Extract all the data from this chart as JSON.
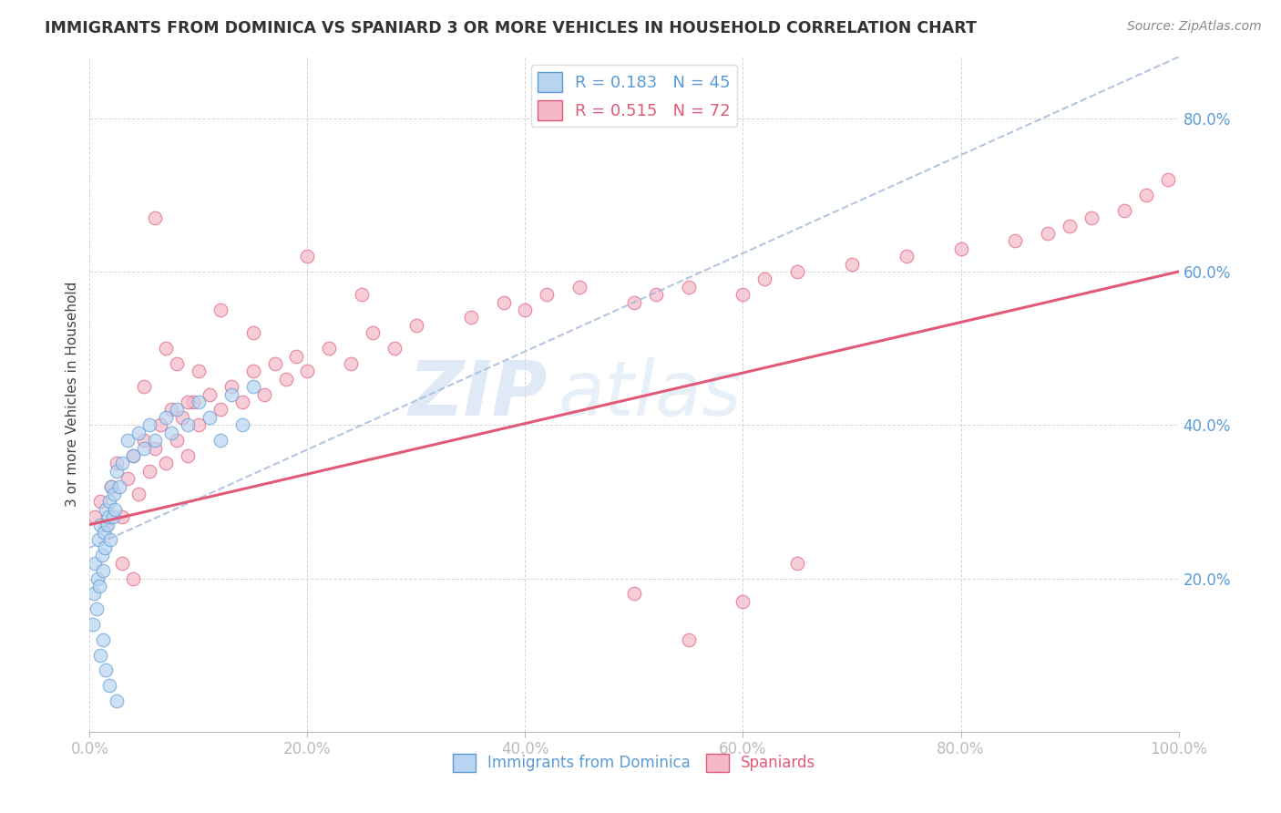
{
  "title": "IMMIGRANTS FROM DOMINICA VS SPANIARD 3 OR MORE VEHICLES IN HOUSEHOLD CORRELATION CHART",
  "source": "Source: ZipAtlas.com",
  "ylabel": "3 or more Vehicles in Household",
  "x_ticks": [
    0.0,
    20.0,
    40.0,
    60.0,
    80.0,
    100.0
  ],
  "x_tick_labels": [
    "0.0%",
    "20.0%",
    "40.0%",
    "60.0%",
    "80.0%",
    "100.0%"
  ],
  "y_ticks": [
    0.0,
    20.0,
    40.0,
    60.0,
    80.0
  ],
  "y_tick_labels": [
    "",
    "20.0%",
    "40.0%",
    "60.0%",
    "80.0%"
  ],
  "xlim": [
    0,
    100
  ],
  "ylim": [
    0,
    88
  ],
  "legend_entries": [
    {
      "label": "R = 0.183   N = 45"
    },
    {
      "label": "R = 0.515   N = 72"
    }
  ],
  "legend_labels_bottom": [
    "Immigrants from Dominica",
    "Spaniards"
  ],
  "watermark_zip": "ZIP",
  "watermark_atlas": "atlas",
  "blue_color": "#5b9bd5",
  "pink_color": "#e05a78",
  "blue_marker_face": "#b8d4f0",
  "blue_marker_edge": "#5b9bd5",
  "pink_marker_face": "#f5b8c8",
  "pink_marker_edge": "#e05a78",
  "blue_scatter_x": [
    0.3,
    0.4,
    0.5,
    0.6,
    0.7,
    0.8,
    0.9,
    1.0,
    1.1,
    1.2,
    1.3,
    1.4,
    1.5,
    1.6,
    1.7,
    1.8,
    1.9,
    2.0,
    2.1,
    2.2,
    2.3,
    2.5,
    2.7,
    3.0,
    3.5,
    4.0,
    4.5,
    5.0,
    5.5,
    6.0,
    7.0,
    7.5,
    8.0,
    9.0,
    10.0,
    11.0,
    12.0,
    13.0,
    14.0,
    15.0,
    1.0,
    1.2,
    1.5,
    1.8,
    2.5
  ],
  "blue_scatter_y": [
    14.0,
    18.0,
    22.0,
    16.0,
    20.0,
    25.0,
    19.0,
    27.0,
    23.0,
    21.0,
    26.0,
    24.0,
    29.0,
    27.0,
    28.0,
    30.0,
    25.0,
    32.0,
    28.0,
    31.0,
    29.0,
    34.0,
    32.0,
    35.0,
    38.0,
    36.0,
    39.0,
    37.0,
    40.0,
    38.0,
    41.0,
    39.0,
    42.0,
    40.0,
    43.0,
    41.0,
    38.0,
    44.0,
    40.0,
    45.0,
    10.0,
    12.0,
    8.0,
    6.0,
    4.0
  ],
  "pink_scatter_x": [
    0.5,
    1.0,
    1.5,
    2.0,
    2.5,
    3.0,
    3.5,
    4.0,
    4.5,
    5.0,
    5.5,
    6.0,
    6.5,
    7.0,
    7.5,
    8.0,
    8.5,
    9.0,
    9.5,
    10.0,
    11.0,
    12.0,
    13.0,
    14.0,
    15.0,
    16.0,
    17.0,
    18.0,
    19.0,
    20.0,
    22.0,
    24.0,
    26.0,
    28.0,
    30.0,
    35.0,
    38.0,
    40.0,
    42.0,
    45.0,
    50.0,
    52.0,
    55.0,
    60.0,
    62.0,
    65.0,
    70.0,
    75.0,
    80.0,
    85.0,
    88.0,
    90.0,
    92.0,
    95.0,
    97.0,
    99.0,
    3.0,
    4.0,
    5.0,
    6.0,
    7.0,
    8.0,
    9.0,
    10.0,
    12.0,
    15.0,
    20.0,
    25.0,
    50.0,
    55.0,
    60.0,
    65.0
  ],
  "pink_scatter_y": [
    28.0,
    30.0,
    27.0,
    32.0,
    35.0,
    28.0,
    33.0,
    36.0,
    31.0,
    38.0,
    34.0,
    37.0,
    40.0,
    35.0,
    42.0,
    38.0,
    41.0,
    36.0,
    43.0,
    40.0,
    44.0,
    42.0,
    45.0,
    43.0,
    47.0,
    44.0,
    48.0,
    46.0,
    49.0,
    47.0,
    50.0,
    48.0,
    52.0,
    50.0,
    53.0,
    54.0,
    56.0,
    55.0,
    57.0,
    58.0,
    56.0,
    57.0,
    58.0,
    57.0,
    59.0,
    60.0,
    61.0,
    62.0,
    63.0,
    64.0,
    65.0,
    66.0,
    67.0,
    68.0,
    70.0,
    72.0,
    22.0,
    20.0,
    45.0,
    67.0,
    50.0,
    48.0,
    43.0,
    47.0,
    55.0,
    52.0,
    62.0,
    57.0,
    18.0,
    12.0,
    17.0,
    22.0
  ],
  "blue_trend_x": [
    0,
    100
  ],
  "blue_trend_y": [
    24.0,
    88.0
  ],
  "pink_trend_x": [
    0,
    100
  ],
  "pink_trend_y": [
    27.0,
    60.0
  ],
  "grid_color": "#cccccc",
  "bg_color": "#ffffff",
  "title_color": "#333333",
  "source_color": "#888888",
  "tick_color": "#5b9bd5"
}
